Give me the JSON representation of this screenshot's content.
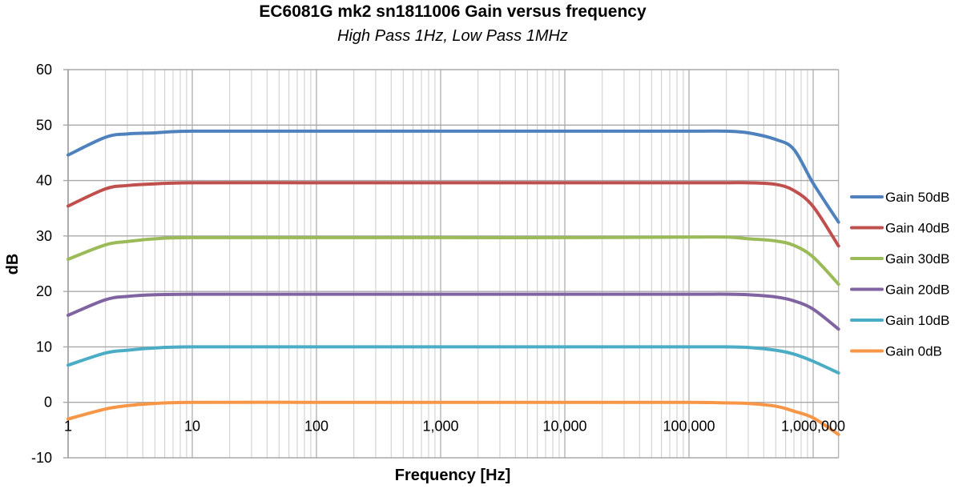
{
  "chart_data": {
    "type": "line",
    "title": "EC6081G mk2 sn1811006 Gain versus frequency",
    "subtitle": "High Pass 1Hz, Low Pass 1MHz",
    "xlabel": "Frequency [Hz]",
    "ylabel": "dB",
    "xscale": "log",
    "xlim": [
      1,
      1600000
    ],
    "ylim": [
      -10,
      60
    ],
    "yticks": [
      60,
      50,
      40,
      30,
      20,
      10,
      0,
      -10
    ],
    "xticks": [
      {
        "value": 1,
        "label": "1"
      },
      {
        "value": 10,
        "label": "10"
      },
      {
        "value": 100,
        "label": "100"
      },
      {
        "value": 1000,
        "label": "1,000"
      },
      {
        "value": 10000,
        "label": "10,000"
      },
      {
        "value": 100000,
        "label": "100,000"
      },
      {
        "value": 1000000,
        "label": "1,000,000"
      }
    ],
    "grid": true,
    "legend_position": "right",
    "x": [
      1,
      2,
      3,
      5,
      10,
      100,
      1000,
      10000,
      100000,
      200000,
      300000,
      500000,
      700000,
      1000000,
      1600000
    ],
    "series": [
      {
        "name": "Gain 50dB",
        "color": "#4F81BD",
        "values": [
          44.6,
          47.8,
          48.4,
          48.6,
          48.9,
          48.9,
          48.9,
          48.9,
          48.9,
          48.9,
          48.6,
          47.4,
          45.6,
          39.5,
          32.5
        ]
      },
      {
        "name": "Gain 40dB",
        "color": "#C0504D",
        "values": [
          35.4,
          38.5,
          39.1,
          39.4,
          39.6,
          39.6,
          39.6,
          39.6,
          39.6,
          39.6,
          39.6,
          39.3,
          38.2,
          35.3,
          28.2
        ]
      },
      {
        "name": "Gain 30dB",
        "color": "#9BBB59",
        "values": [
          25.8,
          28.4,
          29.0,
          29.5,
          29.7,
          29.7,
          29.7,
          29.7,
          29.8,
          29.8,
          29.5,
          29.1,
          28.3,
          26.2,
          21.3
        ]
      },
      {
        "name": "Gain 20dB",
        "color": "#8064A2",
        "values": [
          15.7,
          18.5,
          19.1,
          19.4,
          19.5,
          19.5,
          19.5,
          19.5,
          19.5,
          19.5,
          19.4,
          19.0,
          18.3,
          16.8,
          13.2
        ]
      },
      {
        "name": "Gain 10dB",
        "color": "#4BACC6",
        "values": [
          6.7,
          8.9,
          9.4,
          9.8,
          10.0,
          10.0,
          10.0,
          10.0,
          10.0,
          10.0,
          9.9,
          9.4,
          8.7,
          7.4,
          5.3
        ]
      },
      {
        "name": "Gain 0dB",
        "color": "#F79646",
        "values": [
          -3.0,
          -1.2,
          -0.6,
          -0.2,
          0.0,
          0.0,
          0.0,
          0.0,
          0.0,
          -0.1,
          -0.2,
          -0.7,
          -1.6,
          -2.8,
          -5.8
        ]
      }
    ]
  }
}
